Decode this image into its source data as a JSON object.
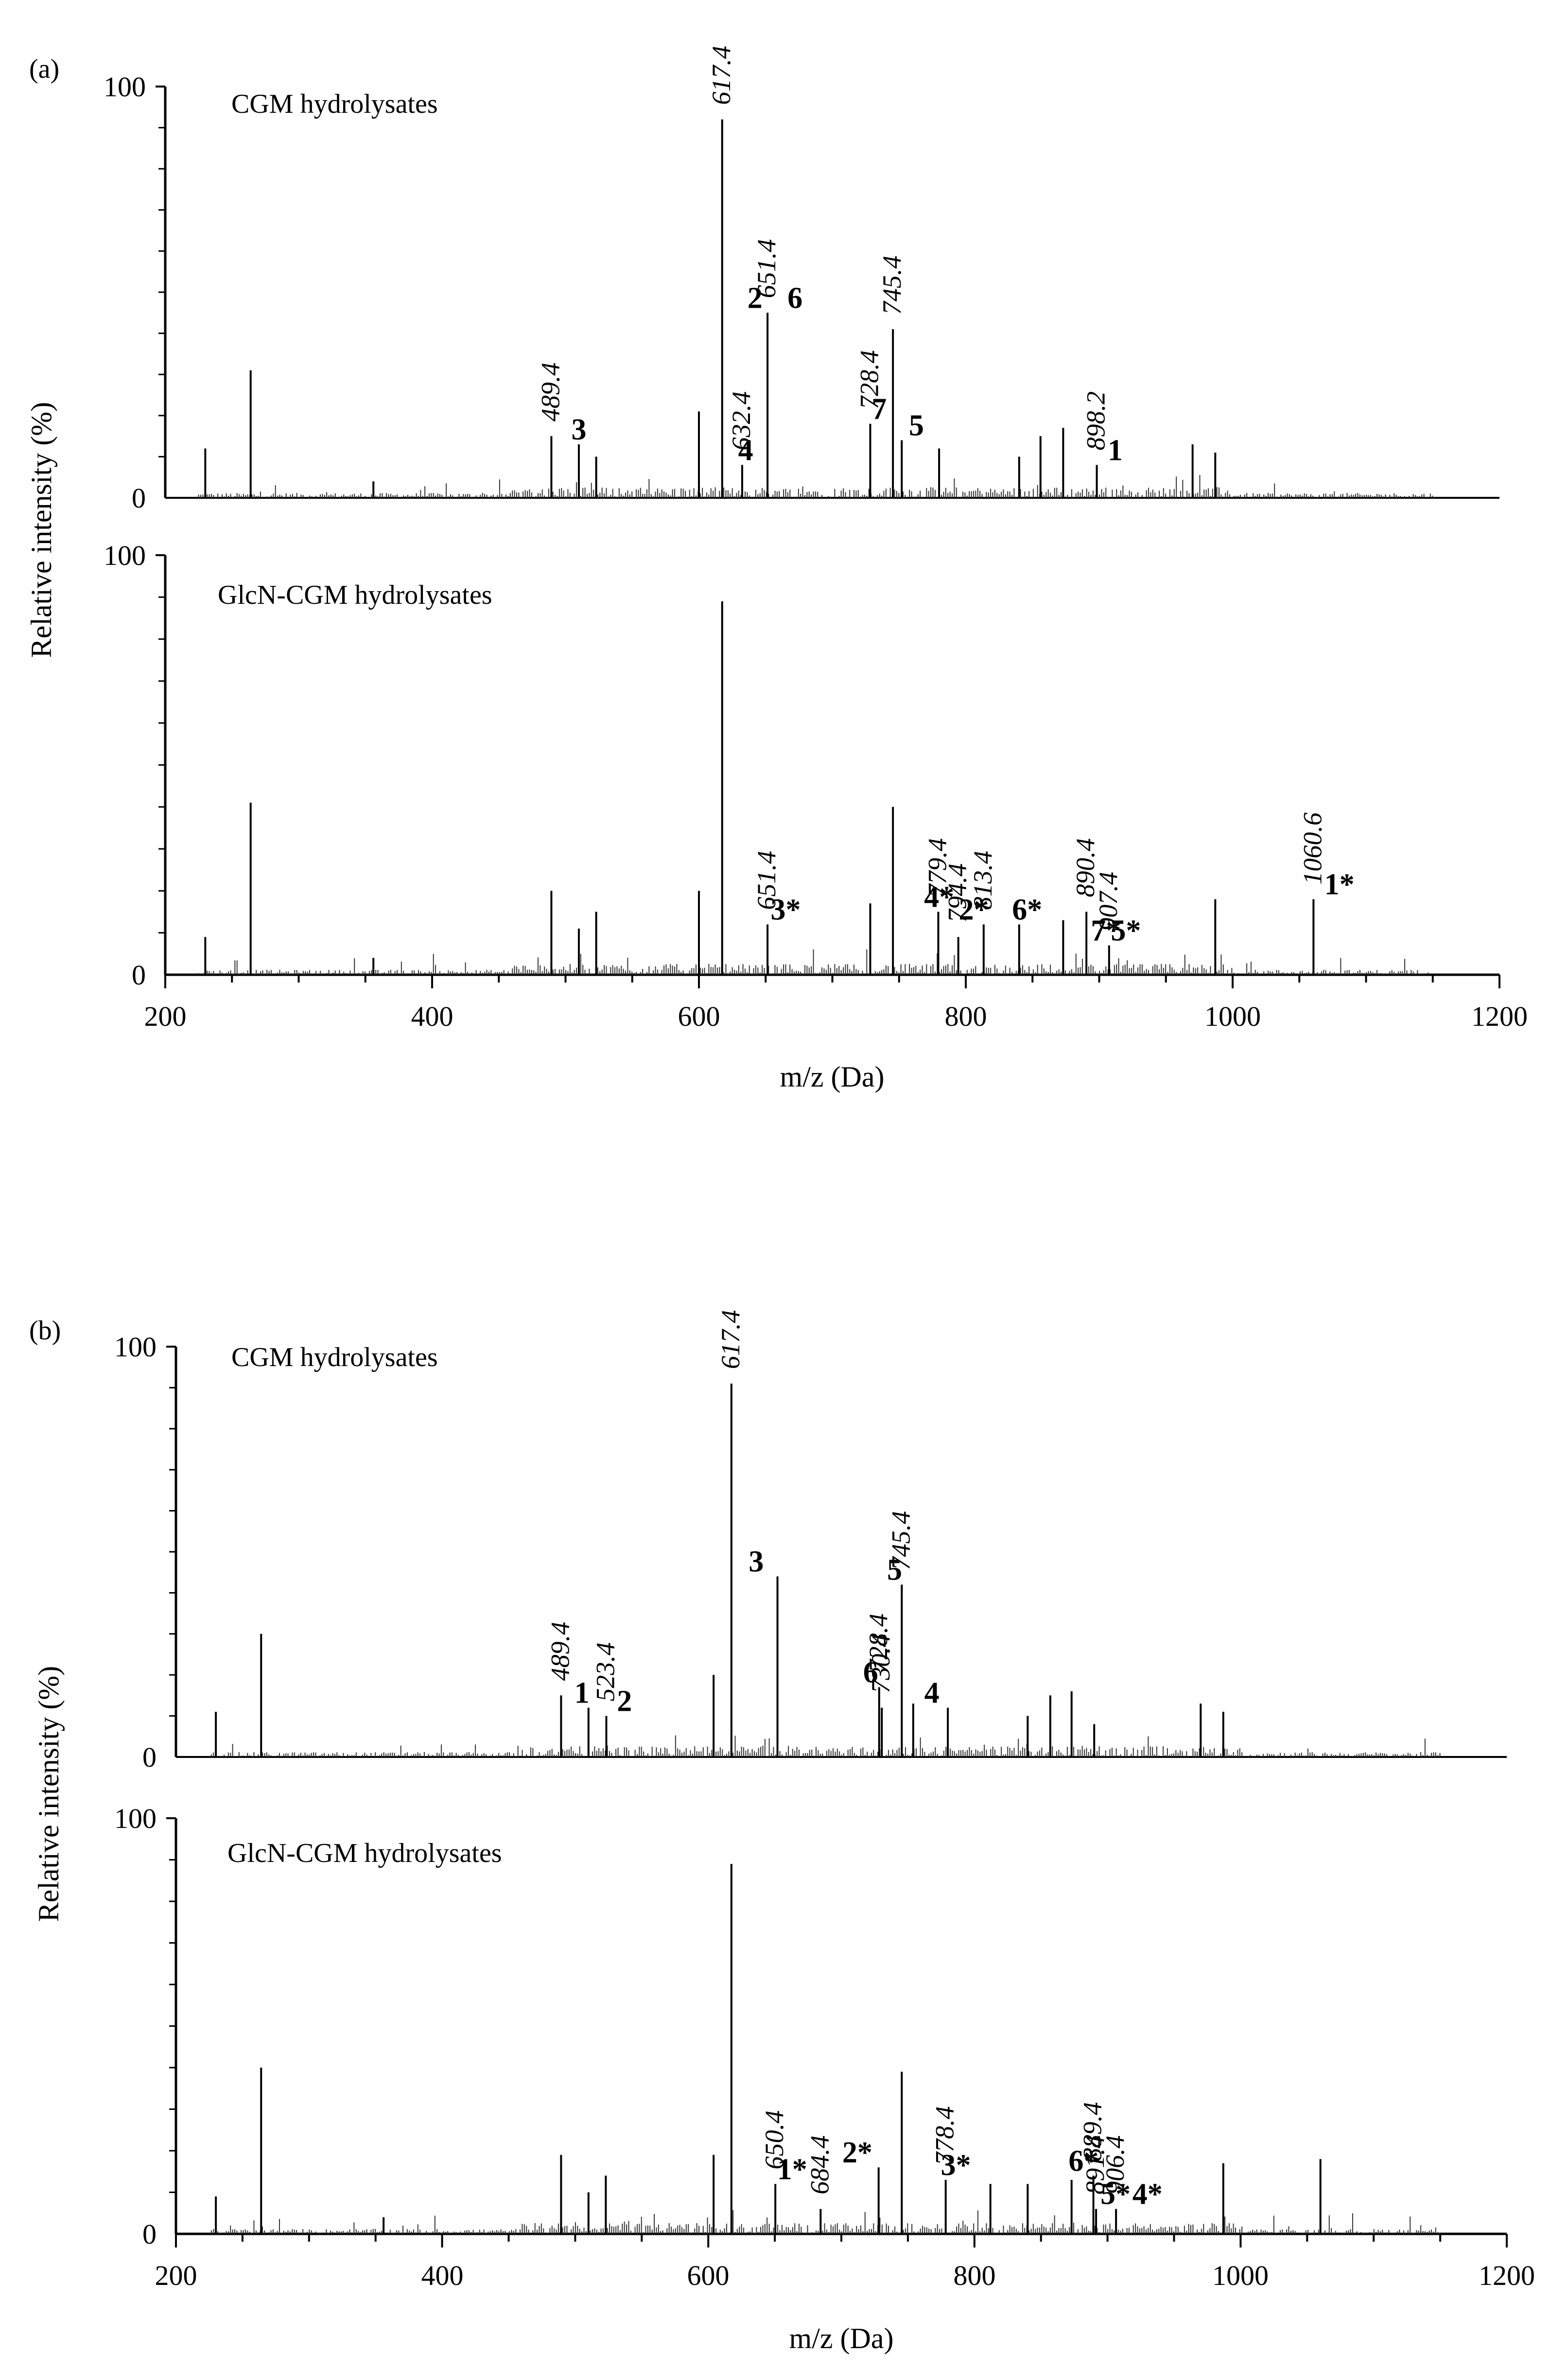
{
  "chart_data": [
    {
      "type": "bar",
      "panel": "(a)",
      "xlabel": "m/z (Da)",
      "ylabel": "Relative intensity (%)",
      "xlim": [
        200,
        1200
      ],
      "xticks": [
        "200",
        "400",
        "600",
        "800",
        "1000",
        "1200"
      ],
      "spectra": [
        {
          "name": "CGM hydrolysates",
          "ylim": [
            0,
            100
          ],
          "yticks": [
            "0",
            "100"
          ],
          "peaks": [
            {
              "mz": 230,
              "intensity": 12
            },
            {
              "mz": 264,
              "intensity": 31
            },
            {
              "mz": 356,
              "intensity": 4
            },
            {
              "mz": 489.4,
              "intensity": 15
            },
            {
              "mz": 510,
              "intensity": 13
            },
            {
              "mz": 523,
              "intensity": 10
            },
            {
              "mz": 600,
              "intensity": 21
            },
            {
              "mz": 617.4,
              "intensity": 92
            },
            {
              "mz": 632.4,
              "intensity": 8
            },
            {
              "mz": 651.4,
              "intensity": 45
            },
            {
              "mz": 728.4,
              "intensity": 18
            },
            {
              "mz": 745.4,
              "intensity": 41
            },
            {
              "mz": 752,
              "intensity": 14
            },
            {
              "mz": 780,
              "intensity": 12
            },
            {
              "mz": 840,
              "intensity": 10
            },
            {
              "mz": 856,
              "intensity": 15
            },
            {
              "mz": 873,
              "intensity": 17
            },
            {
              "mz": 898.2,
              "intensity": 8
            },
            {
              "mz": 970,
              "intensity": 13
            },
            {
              "mz": 987,
              "intensity": 11
            }
          ],
          "annotations": [
            {
              "text": "489.4",
              "mz": 489.4
            },
            {
              "text": "617.4",
              "mz": 617.4
            },
            {
              "text": "632.4",
              "mz": 632.4
            },
            {
              "text": "651.4",
              "mz": 651.4
            },
            {
              "text": "728.4",
              "mz": 728.4
            },
            {
              "text": "745.4",
              "mz": 745.4
            },
            {
              "text": "898.2",
              "mz": 898.2
            }
          ],
          "ids": [
            {
              "text": "3",
              "mz": 510
            },
            {
              "text": "4",
              "mz": 635
            },
            {
              "text": "2",
              "mz": 642
            },
            {
              "text": "6",
              "mz": 672
            },
            {
              "text": "7",
              "mz": 735
            },
            {
              "text": "5",
              "mz": 763
            },
            {
              "text": "1",
              "mz": 912
            }
          ]
        },
        {
          "name": "GlcN-CGM hydrolysates",
          "ylim": [
            0,
            100
          ],
          "yticks": [
            "0",
            "100"
          ],
          "peaks": [
            {
              "mz": 230,
              "intensity": 9
            },
            {
              "mz": 264,
              "intensity": 41
            },
            {
              "mz": 356,
              "intensity": 4
            },
            {
              "mz": 489.4,
              "intensity": 20
            },
            {
              "mz": 510,
              "intensity": 11
            },
            {
              "mz": 523,
              "intensity": 15
            },
            {
              "mz": 600,
              "intensity": 20
            },
            {
              "mz": 617.4,
              "intensity": 89
            },
            {
              "mz": 651.4,
              "intensity": 12
            },
            {
              "mz": 728.4,
              "intensity": 17
            },
            {
              "mz": 745.4,
              "intensity": 40
            },
            {
              "mz": 779.4,
              "intensity": 15
            },
            {
              "mz": 794.4,
              "intensity": 9
            },
            {
              "mz": 813.4,
              "intensity": 12
            },
            {
              "mz": 840,
              "intensity": 12
            },
            {
              "mz": 873,
              "intensity": 13
            },
            {
              "mz": 890.4,
              "intensity": 15
            },
            {
              "mz": 907.4,
              "intensity": 7
            },
            {
              "mz": 987,
              "intensity": 18
            },
            {
              "mz": 1060.6,
              "intensity": 18
            }
          ],
          "annotations": [
            {
              "text": "651.4",
              "mz": 651.4
            },
            {
              "text": "779.4",
              "mz": 779.4
            },
            {
              "text": "794.4",
              "mz": 794.4
            },
            {
              "text": "813.4",
              "mz": 813.4
            },
            {
              "text": "890.4",
              "mz": 890.4
            },
            {
              "text": "907.4",
              "mz": 907.4
            },
            {
              "text": "1060.6",
              "mz": 1060.6
            }
          ],
          "ids": [
            {
              "text": "3*",
              "mz": 665
            },
            {
              "text": "4*",
              "mz": 780
            },
            {
              "text": "2*",
              "mz": 806
            },
            {
              "text": "6*",
              "mz": 846
            },
            {
              "text": "7*",
              "mz": 905
            },
            {
              "text": "5*",
              "mz": 920
            },
            {
              "text": "1*",
              "mz": 1080
            }
          ]
        }
      ]
    },
    {
      "type": "bar",
      "panel": "(b)",
      "xlabel": "m/z (Da)",
      "ylabel": "Relative intensity (%)",
      "xlim": [
        200,
        1200
      ],
      "xticks": [
        "200",
        "400",
        "600",
        "800",
        "1000",
        "1200"
      ],
      "spectra": [
        {
          "name": "CGM hydrolysates",
          "ylim": [
            0,
            100
          ],
          "yticks": [
            "0",
            "100"
          ],
          "peaks": [
            {
              "mz": 230,
              "intensity": 11
            },
            {
              "mz": 264,
              "intensity": 30
            },
            {
              "mz": 489.4,
              "intensity": 15
            },
            {
              "mz": 510,
              "intensity": 12
            },
            {
              "mz": 523.4,
              "intensity": 10
            },
            {
              "mz": 604,
              "intensity": 20
            },
            {
              "mz": 617.4,
              "intensity": 91
            },
            {
              "mz": 652,
              "intensity": 44
            },
            {
              "mz": 728.4,
              "intensity": 17
            },
            {
              "mz": 730.4,
              "intensity": 12
            },
            {
              "mz": 745.4,
              "intensity": 42
            },
            {
              "mz": 754,
              "intensity": 13
            },
            {
              "mz": 780,
              "intensity": 12
            },
            {
              "mz": 840,
              "intensity": 10
            },
            {
              "mz": 857,
              "intensity": 15
            },
            {
              "mz": 873,
              "intensity": 16
            },
            {
              "mz": 890,
              "intensity": 8
            },
            {
              "mz": 970,
              "intensity": 13
            },
            {
              "mz": 987,
              "intensity": 11
            }
          ],
          "annotations": [
            {
              "text": "489.4",
              "mz": 489.4
            },
            {
              "text": "523.4",
              "mz": 523.4
            },
            {
              "text": "617.4",
              "mz": 617.4
            },
            {
              "text": "728.4",
              "mz": 728.4
            },
            {
              "text": "730.4",
              "mz": 730.4
            },
            {
              "text": "745.4",
              "mz": 745.4
            }
          ],
          "ids": [
            {
              "text": "1",
              "mz": 505
            },
            {
              "text": "2",
              "mz": 537
            },
            {
              "text": "3",
              "mz": 636
            },
            {
              "text": "6",
              "mz": 722
            },
            {
              "text": "5",
              "mz": 740
            },
            {
              "text": "4",
              "mz": 768
            }
          ]
        },
        {
          "name": "GlcN-CGM hydrolysates",
          "ylim": [
            0,
            100
          ],
          "yticks": [
            "0",
            "100"
          ],
          "peaks": [
            {
              "mz": 230,
              "intensity": 9
            },
            {
              "mz": 264,
              "intensity": 40
            },
            {
              "mz": 356,
              "intensity": 4
            },
            {
              "mz": 489.4,
              "intensity": 19
            },
            {
              "mz": 510,
              "intensity": 10
            },
            {
              "mz": 523,
              "intensity": 14
            },
            {
              "mz": 604,
              "intensity": 19
            },
            {
              "mz": 617.4,
              "intensity": 89
            },
            {
              "mz": 650.4,
              "intensity": 12
            },
            {
              "mz": 684.4,
              "intensity": 6
            },
            {
              "mz": 728,
              "intensity": 16
            },
            {
              "mz": 745.4,
              "intensity": 39
            },
            {
              "mz": 778.4,
              "intensity": 13
            },
            {
              "mz": 812,
              "intensity": 12
            },
            {
              "mz": 840,
              "intensity": 12
            },
            {
              "mz": 873,
              "intensity": 13
            },
            {
              "mz": 889.4,
              "intensity": 14
            },
            {
              "mz": 891.4,
              "intensity": 6
            },
            {
              "mz": 906.4,
              "intensity": 6
            },
            {
              "mz": 987,
              "intensity": 17
            },
            {
              "mz": 1060,
              "intensity": 18
            }
          ],
          "annotations": [
            {
              "text": "650.4",
              "mz": 650.4
            },
            {
              "text": "684.4",
              "mz": 684.4
            },
            {
              "text": "778.4",
              "mz": 778.4
            },
            {
              "text": "889.4",
              "mz": 889.4
            },
            {
              "text": "891.4",
              "mz": 891.4
            },
            {
              "text": "906.4",
              "mz": 906.4
            }
          ],
          "ids": [
            {
              "text": "1*",
              "mz": 663
            },
            {
              "text": "2*",
              "mz": 712
            },
            {
              "text": "3*",
              "mz": 786
            },
            {
              "text": "6*",
              "mz": 882
            },
            {
              "text": "5*",
              "mz": 906
            },
            {
              "text": "4*",
              "mz": 930
            }
          ]
        }
      ]
    }
  ]
}
